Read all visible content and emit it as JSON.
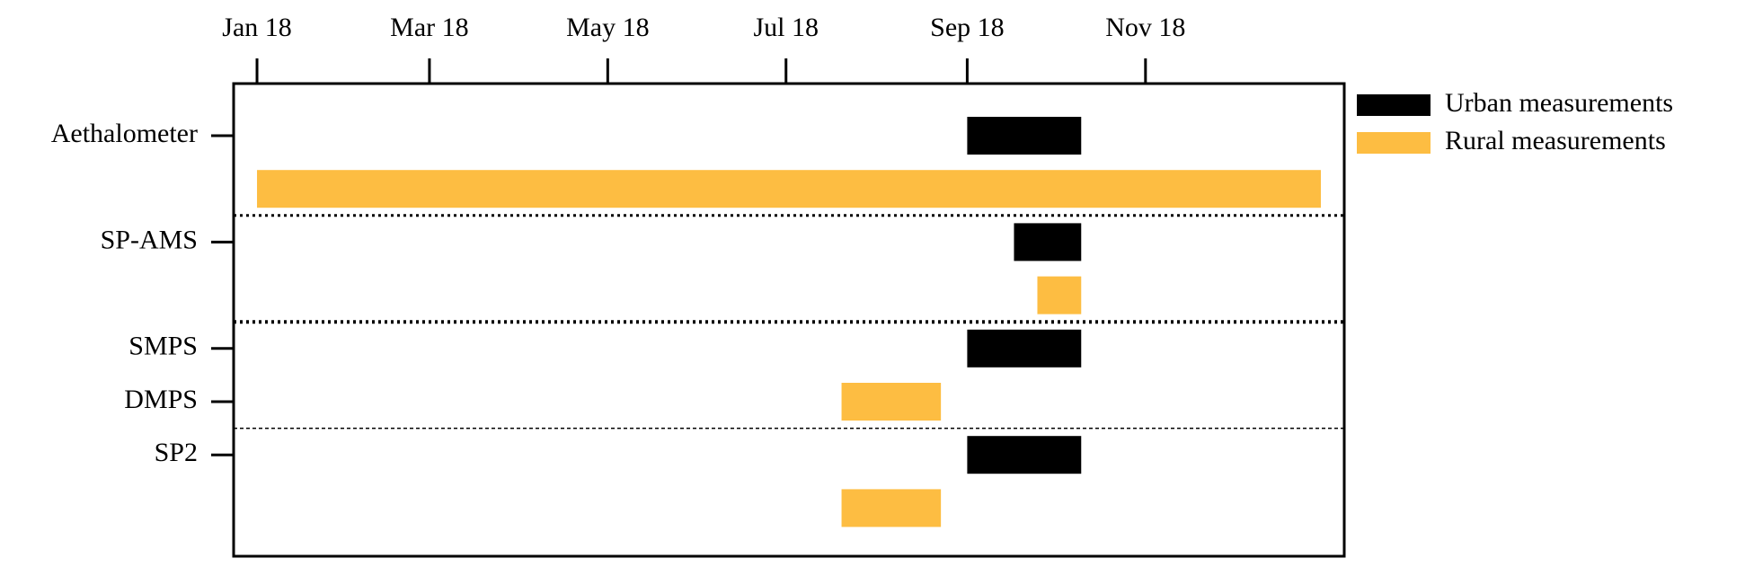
{
  "chart_data": {
    "type": "gantt",
    "categories": [
      "Aethalometer",
      null,
      "SP-AMS",
      null,
      "SMPS",
      "DMPS",
      "SP2",
      null
    ],
    "series": [
      {
        "name": "Urban measurements",
        "color": "#000000",
        "values": [
          [
            243,
            282
          ],
          null,
          [
            259,
            282
          ],
          null,
          [
            243,
            282
          ],
          null,
          [
            243,
            282
          ],
          null
        ]
      },
      {
        "name": "Rural measurements",
        "color": "#fdbd42",
        "values": [
          null,
          [
            0,
            364
          ],
          null,
          [
            267,
            282
          ],
          null,
          [
            200,
            234
          ],
          null,
          [
            200,
            234
          ]
        ]
      }
    ],
    "xlim": [
      -8,
      372
    ],
    "xticks": [
      {
        "value": 0,
        "label": "Jan 18"
      },
      {
        "value": 59,
        "label": "Mar 18"
      },
      {
        "value": 120,
        "label": "May 18"
      },
      {
        "value": 181,
        "label": "Jul 18"
      },
      {
        "value": 243,
        "label": "Sep 18"
      },
      {
        "value": 304,
        "label": "Nov 18"
      }
    ],
    "x_axis_position": "top",
    "legend": "right"
  }
}
